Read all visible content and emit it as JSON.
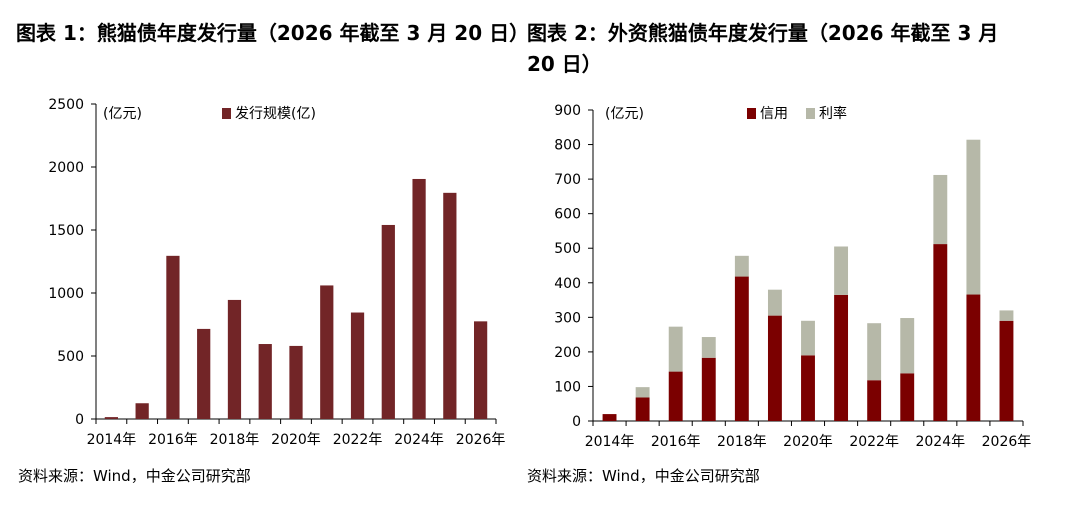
{
  "panels": [
    {
      "title": "图表 1：熊猫债年度发行量（2026 年截至 3 月 20 日）",
      "source": "资料来源：Wind，中金公司研究部"
    },
    {
      "title": "图表 2：外资熊猫债年度发行量（2026 年截至 3 月 20 日）",
      "source": "资料来源：Wind，中金公司研究部"
    }
  ],
  "chart_data": [
    {
      "type": "bar",
      "unit_label": "(亿元)",
      "categories": [
        "2014年",
        "2015年",
        "2016年",
        "2017年",
        "2018年",
        "2019年",
        "2020年",
        "2021年",
        "2022年",
        "2023年",
        "2024年",
        "2025年",
        "2026年"
      ],
      "x_tick_labels": [
        "2014年",
        "2016年",
        "2018年",
        "2020年",
        "2022年",
        "2024年",
        "2026年"
      ],
      "series": [
        {
          "name": "发行规模(亿)",
          "color": "#722527",
          "values": [
            15,
            125,
            1295,
            715,
            945,
            595,
            580,
            1060,
            845,
            1540,
            1905,
            1795,
            775
          ]
        }
      ],
      "ylim": [
        0,
        2500
      ],
      "yticks": [
        0,
        500,
        1000,
        1500,
        2000,
        2500
      ],
      "legend": "top-center",
      "grid": false
    },
    {
      "type": "stacked-bar",
      "unit_label": "(亿元)",
      "categories": [
        "2014年",
        "2015年",
        "2016年",
        "2017年",
        "2018年",
        "2019年",
        "2020年",
        "2021年",
        "2022年",
        "2023年",
        "2024年",
        "2025年",
        "2026年"
      ],
      "x_tick_labels": [
        "2014年",
        "2016年",
        "2018年",
        "2020年",
        "2022年",
        "2024年",
        "2026年"
      ],
      "series": [
        {
          "name": "信用",
          "color": "#7b0000",
          "values": [
            20,
            68,
            143,
            183,
            418,
            305,
            190,
            365,
            118,
            138,
            512,
            366,
            290
          ]
        },
        {
          "name": "利率",
          "color": "#b6b8a8",
          "values": [
            0,
            30,
            130,
            60,
            60,
            75,
            100,
            140,
            165,
            160,
            200,
            448,
            30
          ]
        }
      ],
      "ylim": [
        0,
        900
      ],
      "yticks": [
        0,
        100,
        200,
        300,
        400,
        500,
        600,
        700,
        800,
        900
      ],
      "legend": "top-center",
      "grid": false
    }
  ]
}
